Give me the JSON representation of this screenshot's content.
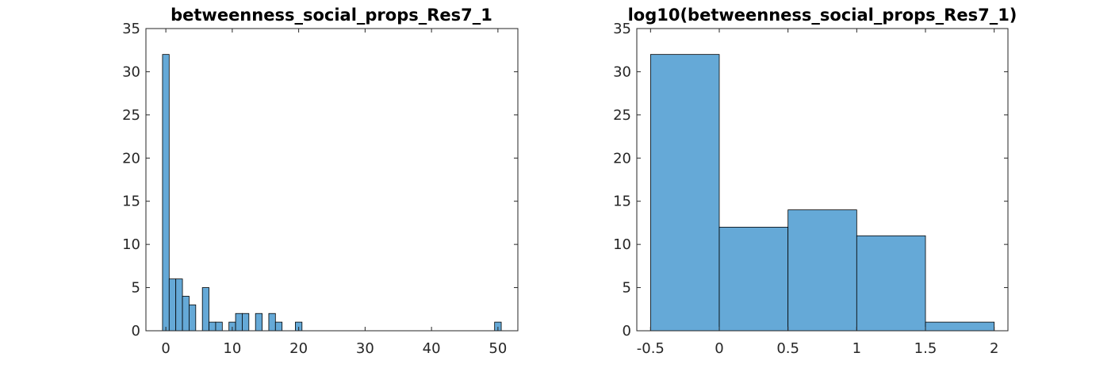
{
  "chart_data": [
    {
      "type": "bar",
      "title": "betweenness_social_props_Res7_1",
      "xlabel": "",
      "ylabel": "",
      "xlim": [
        -3,
        53
      ],
      "ylim": [
        0,
        35
      ],
      "xticks": [
        "0",
        "10",
        "20",
        "30",
        "40",
        "50"
      ],
      "xtick_values": [
        0,
        10,
        20,
        30,
        40,
        50
      ],
      "yticks": [
        "0",
        "5",
        "10",
        "15",
        "20",
        "25",
        "30",
        "35"
      ],
      "ytick_values": [
        0,
        5,
        10,
        15,
        20,
        25,
        30,
        35
      ],
      "bin_edges": [
        -0.5,
        0.5,
        1.5,
        2.5,
        3.5,
        4.5,
        5.5,
        6.5,
        7.5,
        8.5,
        9.5,
        10.5,
        11.5,
        12.5,
        13.5,
        14.5,
        15.5,
        16.5,
        17.5,
        18.5,
        19.5,
        20.5,
        21.5,
        22.5,
        23.5,
        24.5,
        25.5,
        26.5,
        27.5,
        28.5,
        29.5,
        30.5,
        31.5,
        32.5,
        33.5,
        34.5,
        35.5,
        36.5,
        37.5,
        38.5,
        39.5,
        40.5,
        41.5,
        42.5,
        43.5,
        44.5,
        45.5,
        46.5,
        47.5,
        48.5,
        49.5,
        50.5
      ],
      "values": [
        32,
        6,
        6,
        4,
        3,
        0,
        5,
        1,
        1,
        0,
        1,
        2,
        2,
        0,
        2,
        0,
        2,
        1,
        0,
        0,
        1,
        0,
        0,
        0,
        0,
        0,
        0,
        0,
        0,
        0,
        0,
        0,
        0,
        0,
        0,
        0,
        0,
        0,
        0,
        0,
        0,
        0,
        0,
        0,
        0,
        0,
        0,
        0,
        0,
        0,
        1
      ],
      "color": "#65a9d7",
      "grid": false
    },
    {
      "type": "bar",
      "title": "log10(betweenness_social_props_Res7_1)",
      "xlabel": "",
      "ylabel": "",
      "xlim": [
        -0.6,
        2.1
      ],
      "ylim": [
        0,
        35
      ],
      "xticks": [
        "-0.5",
        "0",
        "0.5",
        "1",
        "1.5",
        "2"
      ],
      "xtick_values": [
        -0.5,
        0,
        0.5,
        1,
        1.5,
        2
      ],
      "yticks": [
        "0",
        "5",
        "10",
        "15",
        "20",
        "25",
        "30",
        "35"
      ],
      "ytick_values": [
        0,
        5,
        10,
        15,
        20,
        25,
        30,
        35
      ],
      "bin_edges": [
        -0.5,
        0,
        0.5,
        1,
        1.5,
        2
      ],
      "values": [
        32,
        12,
        14,
        11,
        1
      ],
      "color": "#65a9d7",
      "grid": false
    }
  ]
}
